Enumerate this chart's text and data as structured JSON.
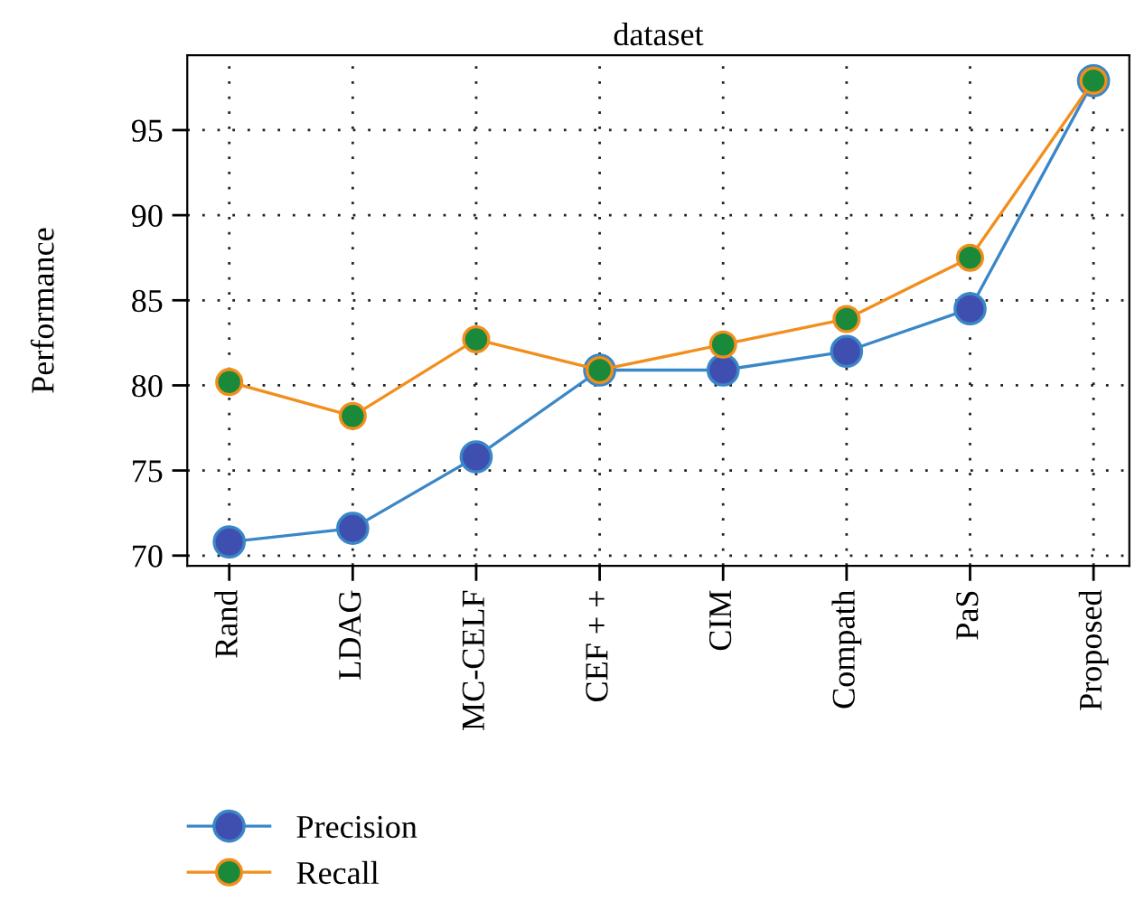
{
  "chart_data": {
    "type": "line",
    "title": "dataset",
    "ylabel": "Performance",
    "categories": [
      "Rand",
      "LDAG",
      "MC-CELF",
      "CEF + +",
      "CIM",
      "Compath",
      "PaS",
      "Proposed"
    ],
    "series": [
      {
        "name": "Precision",
        "color": "#3a87c8",
        "values": [
          70.8,
          71.6,
          75.8,
          80.9,
          80.9,
          82.0,
          84.5,
          97.9
        ]
      },
      {
        "name": "Recall",
        "color": "#f28e1c",
        "values": [
          80.2,
          78.2,
          82.7,
          80.9,
          82.4,
          83.9,
          87.5,
          97.9
        ]
      }
    ],
    "ylim": [
      69.4,
      99.4
    ],
    "yticks": [
      70,
      75,
      80,
      85,
      90,
      95
    ],
    "grid": true,
    "legend": "bottom left",
    "marker": "circle",
    "line_style": "solid"
  }
}
